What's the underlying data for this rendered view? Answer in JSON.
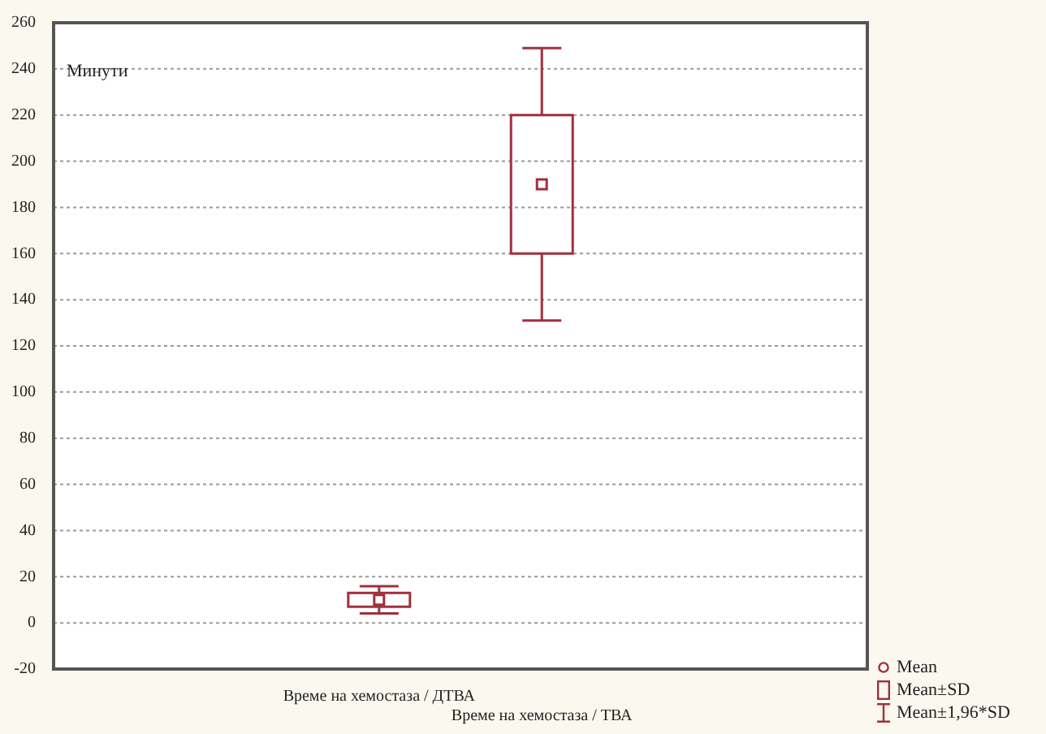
{
  "chart_data": {
    "type": "box",
    "ylabel": "Минути",
    "categories": [
      "Време на хемостаза / ДТВА",
      "Време на хемостаза / ТВА"
    ],
    "boxes": [
      {
        "low": 4.1,
        "q1": 7,
        "median": 10,
        "q3": 13,
        "high": 15.9
      },
      {
        "low": 131,
        "q1": 160,
        "median": 190,
        "q3": 220,
        "high": 249
      }
    ],
    "color": "#a0303c",
    "ylim": [
      -20,
      260
    ],
    "yticks": [
      -20,
      0,
      20,
      40,
      60,
      80,
      100,
      120,
      140,
      160,
      180,
      200,
      220,
      240,
      260
    ],
    "grid": "y",
    "annotations": [
      "Mean",
      "Mean±SD",
      "Mean±1,96*SD"
    ]
  }
}
